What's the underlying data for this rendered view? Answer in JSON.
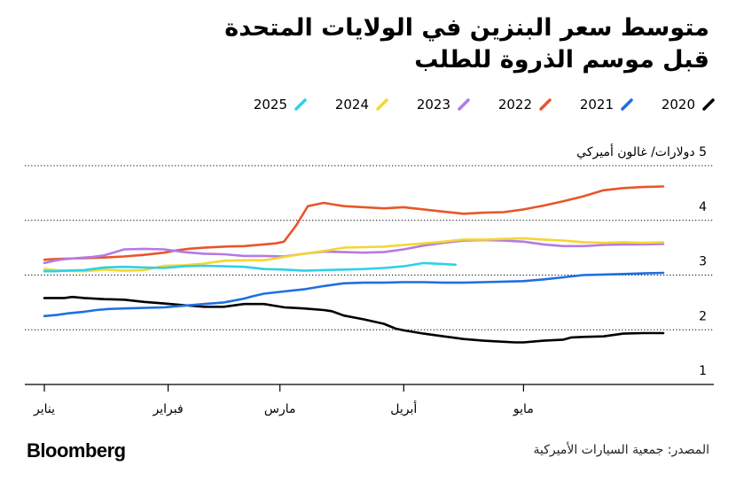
{
  "title_line1": "متوسط سعر البنزين في الولايات المتحدة",
  "title_line2": "قبل موسم الذروة للطلب",
  "source": "المصدر: جمعية السيارات الأميركية",
  "logo": "Bloomberg",
  "chart_data": {
    "type": "line",
    "title": "متوسط سعر البنزين في الولايات المتحدة قبل موسم الذروة للطلب",
    "ylabel": "5 دولارات/ غالون أميركي",
    "ylim": [
      1,
      5
    ],
    "xlim": [
      0,
      155
    ],
    "yticks": [
      {
        "value": 5,
        "label": "5 دولارات/ غالون أميركي"
      },
      {
        "value": 4,
        "label": "4"
      },
      {
        "value": 3,
        "label": "3"
      },
      {
        "value": 2,
        "label": "2"
      },
      {
        "value": 1,
        "label": "1"
      }
    ],
    "xticks": [
      {
        "day": 0,
        "label": "يناير"
      },
      {
        "day": 31,
        "label": "فبراير"
      },
      {
        "day": 59,
        "label": "مارس"
      },
      {
        "day": 90,
        "label": "أبريل"
      },
      {
        "day": 120,
        "label": "مايو"
      }
    ],
    "series": [
      {
        "name": "2020",
        "color": "#000000",
        "x": [
          0,
          5,
          7,
          10,
          15,
          20,
          25,
          30,
          35,
          40,
          45,
          50,
          55,
          60,
          65,
          70,
          72,
          75,
          80,
          85,
          88,
          90,
          95,
          100,
          105,
          110,
          115,
          118,
          120,
          125,
          130,
          132,
          135,
          140,
          145,
          150,
          155
        ],
        "y": [
          2.58,
          2.58,
          2.6,
          2.58,
          2.56,
          2.55,
          2.51,
          2.48,
          2.45,
          2.42,
          2.42,
          2.47,
          2.47,
          2.41,
          2.39,
          2.36,
          2.34,
          2.26,
          2.19,
          2.11,
          2.02,
          1.99,
          1.93,
          1.88,
          1.83,
          1.8,
          1.78,
          1.77,
          1.77,
          1.8,
          1.82,
          1.86,
          1.87,
          1.88,
          1.93,
          1.94,
          1.94
        ]
      },
      {
        "name": "2021",
        "color": "#1f6fe0",
        "x": [
          0,
          3,
          6,
          10,
          13,
          16,
          20,
          25,
          30,
          35,
          40,
          45,
          50,
          52,
          55,
          60,
          65,
          70,
          75,
          80,
          85,
          90,
          95,
          100,
          105,
          110,
          115,
          120,
          125,
          130,
          135,
          140,
          145,
          150,
          155
        ],
        "y": [
          2.25,
          2.27,
          2.3,
          2.33,
          2.36,
          2.38,
          2.39,
          2.4,
          2.41,
          2.44,
          2.47,
          2.5,
          2.57,
          2.61,
          2.66,
          2.7,
          2.74,
          2.8,
          2.85,
          2.86,
          2.86,
          2.87,
          2.87,
          2.86,
          2.86,
          2.87,
          2.88,
          2.89,
          2.92,
          2.96,
          3.0,
          3.01,
          3.02,
          3.03,
          3.04
        ]
      },
      {
        "name": "2022",
        "color": "#e8562a",
        "x": [
          0,
          2,
          5,
          10,
          15,
          20,
          25,
          30,
          33,
          36,
          40,
          45,
          50,
          55,
          58,
          60,
          63,
          66,
          70,
          75,
          80,
          85,
          90,
          95,
          100,
          105,
          110,
          115,
          120,
          125,
          130,
          135,
          140,
          145,
          150,
          155
        ],
        "y": [
          3.28,
          3.29,
          3.3,
          3.31,
          3.32,
          3.34,
          3.37,
          3.41,
          3.45,
          3.48,
          3.5,
          3.52,
          3.53,
          3.56,
          3.58,
          3.61,
          3.9,
          4.26,
          4.32,
          4.26,
          4.24,
          4.22,
          4.24,
          4.2,
          4.16,
          4.12,
          4.14,
          4.15,
          4.2,
          4.27,
          4.35,
          4.44,
          4.55,
          4.59,
          4.61,
          4.62
        ]
      },
      {
        "name": "2023",
        "color": "#b47ae6",
        "x": [
          0,
          3,
          5,
          8,
          12,
          15,
          20,
          25,
          30,
          35,
          40,
          45,
          50,
          55,
          60,
          65,
          70,
          75,
          80,
          85,
          90,
          95,
          100,
          105,
          110,
          115,
          120,
          125,
          130,
          135,
          140,
          145,
          150,
          155
        ],
        "y": [
          3.22,
          3.27,
          3.29,
          3.31,
          3.33,
          3.36,
          3.47,
          3.48,
          3.47,
          3.42,
          3.39,
          3.38,
          3.35,
          3.35,
          3.34,
          3.39,
          3.43,
          3.42,
          3.41,
          3.42,
          3.47,
          3.54,
          3.59,
          3.63,
          3.64,
          3.63,
          3.61,
          3.56,
          3.53,
          3.53,
          3.55,
          3.56,
          3.56,
          3.57
        ]
      },
      {
        "name": "2024",
        "color": "#f5d630",
        "x": [
          0,
          3,
          5,
          10,
          15,
          20,
          25,
          30,
          35,
          40,
          45,
          50,
          55,
          60,
          65,
          70,
          75,
          80,
          85,
          90,
          95,
          100,
          105,
          110,
          115,
          120,
          125,
          130,
          135,
          140,
          145,
          150,
          155
        ],
        "y": [
          3.11,
          3.09,
          3.08,
          3.07,
          3.1,
          3.08,
          3.09,
          3.17,
          3.18,
          3.21,
          3.26,
          3.27,
          3.27,
          3.33,
          3.39,
          3.44,
          3.5,
          3.51,
          3.52,
          3.55,
          3.58,
          3.61,
          3.65,
          3.65,
          3.66,
          3.67,
          3.65,
          3.63,
          3.6,
          3.59,
          3.6,
          3.59,
          3.6
        ]
      },
      {
        "name": "2025",
        "color": "#2fd0e8",
        "x": [
          0,
          3,
          5,
          10,
          15,
          20,
          25,
          30,
          35,
          40,
          45,
          50,
          55,
          60,
          65,
          70,
          75,
          80,
          85,
          90,
          95,
          100,
          103
        ],
        "y": [
          3.07,
          3.07,
          3.08,
          3.09,
          3.14,
          3.15,
          3.14,
          3.13,
          3.16,
          3.17,
          3.16,
          3.15,
          3.11,
          3.1,
          3.08,
          3.09,
          3.1,
          3.11,
          3.13,
          3.16,
          3.22,
          3.2,
          3.19
        ]
      }
    ]
  }
}
